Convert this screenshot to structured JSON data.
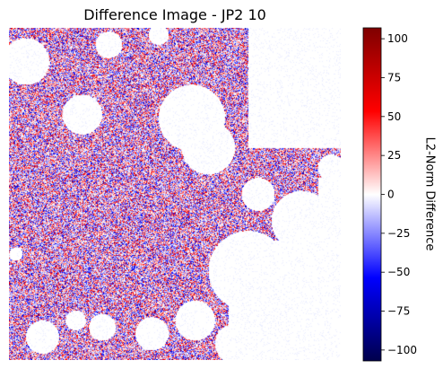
{
  "chart_data": {
    "type": "heatmap",
    "title": "Difference Image - JP2 10",
    "axes_visible": false,
    "colormap": "seismic",
    "colormap_stops": [
      "#00004c",
      "#0000ff",
      "#ffffff",
      "#ff0000",
      "#7f0000"
    ],
    "value_range": [
      -107,
      107
    ],
    "colorbar": {
      "label": "L2-Norm Difference",
      "ticks": [
        -100,
        -75,
        -50,
        -25,
        0,
        25,
        50,
        75,
        100
      ],
      "tick_labels": [
        "−100",
        "−75",
        "−50",
        "−25",
        "0",
        "25",
        "50",
        "75",
        "100"
      ]
    }
  }
}
